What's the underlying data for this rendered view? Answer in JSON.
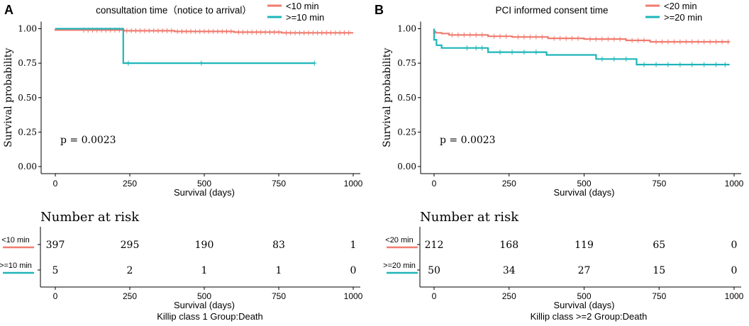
{
  "colors": {
    "group1": "#F07C70",
    "group2": "#1FB5BA",
    "axis": "#000000"
  },
  "chart_data": [
    {
      "panel_label": "A",
      "type": "line",
      "title": "consultation time（notice to arrival）",
      "xlabel": "Survival (days)",
      "ylabel": "Survival probability",
      "xlim": [
        0,
        1000
      ],
      "ylim": [
        0,
        1
      ],
      "x_ticks": [
        0,
        250,
        500,
        750,
        1000
      ],
      "y_ticks": [
        0.0,
        0.25,
        0.5,
        0.75,
        1.0
      ],
      "y_tick_labels": [
        "0.00",
        "0.25",
        "0.50",
        "0.75",
        "1.00"
      ],
      "p_value": "p = 0.0023",
      "series": [
        {
          "name": "<10 min",
          "steps": [
            [
              0,
              1.0
            ],
            [
              0,
              0.99
            ],
            [
              230,
              0.99
            ],
            [
              230,
              0.985
            ],
            [
              400,
              0.985
            ],
            [
              400,
              0.98
            ],
            [
              600,
              0.98
            ],
            [
              600,
              0.975
            ],
            [
              760,
              0.975
            ],
            [
              760,
              0.97
            ],
            [
              1000,
              0.97
            ]
          ],
          "censor": [
            [
              95,
              0.99
            ],
            [
              110,
              0.99
            ],
            [
              125,
              0.99
            ],
            [
              140,
              0.99
            ],
            [
              155,
              0.99
            ],
            [
              170,
              0.99
            ],
            [
              185,
              0.99
            ],
            [
              200,
              0.99
            ],
            [
              215,
              0.99
            ],
            [
              240,
              0.985
            ],
            [
              255,
              0.985
            ],
            [
              270,
              0.985
            ],
            [
              285,
              0.985
            ],
            [
              300,
              0.985
            ],
            [
              315,
              0.985
            ],
            [
              330,
              0.985
            ],
            [
              345,
              0.985
            ],
            [
              360,
              0.985
            ],
            [
              375,
              0.985
            ],
            [
              390,
              0.985
            ],
            [
              410,
              0.98
            ],
            [
              425,
              0.98
            ],
            [
              440,
              0.98
            ],
            [
              455,
              0.98
            ],
            [
              470,
              0.98
            ],
            [
              485,
              0.98
            ],
            [
              500,
              0.98
            ],
            [
              515,
              0.98
            ],
            [
              530,
              0.98
            ],
            [
              545,
              0.98
            ],
            [
              560,
              0.98
            ],
            [
              575,
              0.98
            ],
            [
              590,
              0.98
            ],
            [
              615,
              0.975
            ],
            [
              630,
              0.975
            ],
            [
              645,
              0.975
            ],
            [
              660,
              0.975
            ],
            [
              675,
              0.975
            ],
            [
              690,
              0.975
            ],
            [
              705,
              0.975
            ],
            [
              720,
              0.975
            ],
            [
              735,
              0.975
            ],
            [
              750,
              0.975
            ],
            [
              775,
              0.97
            ],
            [
              790,
              0.97
            ],
            [
              805,
              0.97
            ],
            [
              820,
              0.97
            ],
            [
              835,
              0.97
            ],
            [
              850,
              0.97
            ],
            [
              865,
              0.97
            ],
            [
              880,
              0.97
            ],
            [
              895,
              0.97
            ],
            [
              910,
              0.97
            ],
            [
              925,
              0.97
            ],
            [
              940,
              0.97
            ],
            [
              955,
              0.97
            ],
            [
              970,
              0.97
            ],
            [
              985,
              0.97
            ]
          ]
        },
        {
          "name": ">=10 min",
          "steps": [
            [
              0,
              1.0
            ],
            [
              228,
              1.0
            ],
            [
              228,
              0.75
            ],
            [
              870,
              0.75
            ]
          ],
          "censor": [
            [
              245,
              0.75
            ],
            [
              490,
              0.75
            ],
            [
              870,
              0.75
            ]
          ]
        }
      ],
      "risk_table": {
        "title": "Number at risk",
        "xlabel": "Survival (days)",
        "rows": [
          {
            "label": "<10 min",
            "values": [
              "397",
              "295",
              "190",
              "83",
              "1"
            ]
          },
          {
            "label": ">=10 min",
            "values": [
              "5",
              "2",
              "1",
              "1",
              "0"
            ]
          }
        ]
      },
      "caption": "Killip class 1 Group:Death"
    },
    {
      "panel_label": "B",
      "type": "line",
      "title": "PCI informed consent time",
      "xlabel": "Survival (days)",
      "ylabel": "Survival probability",
      "xlim": [
        0,
        1000
      ],
      "ylim": [
        0,
        1
      ],
      "x_ticks": [
        0,
        250,
        500,
        750,
        1000
      ],
      "y_ticks": [
        0.0,
        0.25,
        0.5,
        0.75,
        1.0
      ],
      "y_tick_labels": [
        "0.00",
        "0.25",
        "0.50",
        "0.75",
        "1.00"
      ],
      "p_value": "p = 0.0023",
      "series": [
        {
          "name": "<20 min",
          "steps": [
            [
              0,
              1.0
            ],
            [
              0,
              0.98
            ],
            [
              5,
              0.98
            ],
            [
              5,
              0.97
            ],
            [
              25,
              0.97
            ],
            [
              25,
              0.965
            ],
            [
              50,
              0.965
            ],
            [
              50,
              0.955
            ],
            [
              180,
              0.955
            ],
            [
              180,
              0.945
            ],
            [
              260,
              0.945
            ],
            [
              260,
              0.94
            ],
            [
              380,
              0.94
            ],
            [
              380,
              0.93
            ],
            [
              500,
              0.93
            ],
            [
              500,
              0.925
            ],
            [
              640,
              0.925
            ],
            [
              640,
              0.915
            ],
            [
              720,
              0.915
            ],
            [
              720,
              0.905
            ],
            [
              985,
              0.905
            ]
          ],
          "censor": [
            [
              60,
              0.955
            ],
            [
              80,
              0.955
            ],
            [
              100,
              0.955
            ],
            [
              120,
              0.955
            ],
            [
              140,
              0.955
            ],
            [
              160,
              0.955
            ],
            [
              200,
              0.945
            ],
            [
              220,
              0.945
            ],
            [
              240,
              0.945
            ],
            [
              280,
              0.94
            ],
            [
              300,
              0.94
            ],
            [
              320,
              0.94
            ],
            [
              340,
              0.94
            ],
            [
              360,
              0.94
            ],
            [
              400,
              0.93
            ],
            [
              420,
              0.93
            ],
            [
              440,
              0.93
            ],
            [
              460,
              0.93
            ],
            [
              480,
              0.93
            ],
            [
              520,
              0.925
            ],
            [
              540,
              0.925
            ],
            [
              560,
              0.925
            ],
            [
              580,
              0.925
            ],
            [
              600,
              0.925
            ],
            [
              620,
              0.925
            ],
            [
              660,
              0.915
            ],
            [
              680,
              0.915
            ],
            [
              700,
              0.915
            ],
            [
              740,
              0.905
            ],
            [
              760,
              0.905
            ],
            [
              780,
              0.905
            ],
            [
              800,
              0.905
            ],
            [
              820,
              0.905
            ],
            [
              840,
              0.905
            ],
            [
              860,
              0.905
            ],
            [
              880,
              0.905
            ],
            [
              900,
              0.905
            ],
            [
              920,
              0.905
            ],
            [
              940,
              0.905
            ],
            [
              960,
              0.905
            ],
            [
              980,
              0.905
            ]
          ]
        },
        {
          "name": ">=20 min",
          "steps": [
            [
              0,
              1.0
            ],
            [
              0,
              0.92
            ],
            [
              8,
              0.92
            ],
            [
              8,
              0.88
            ],
            [
              25,
              0.88
            ],
            [
              25,
              0.86
            ],
            [
              180,
              0.86
            ],
            [
              180,
              0.83
            ],
            [
              375,
              0.83
            ],
            [
              375,
              0.81
            ],
            [
              540,
              0.81
            ],
            [
              540,
              0.78
            ],
            [
              675,
              0.78
            ],
            [
              675,
              0.74
            ],
            [
              985,
              0.74
            ]
          ],
          "censor": [
            [
              110,
              0.86
            ],
            [
              140,
              0.86
            ],
            [
              160,
              0.86
            ],
            [
              220,
              0.83
            ],
            [
              260,
              0.83
            ],
            [
              300,
              0.83
            ],
            [
              340,
              0.83
            ],
            [
              560,
              0.78
            ],
            [
              600,
              0.78
            ],
            [
              640,
              0.78
            ],
            [
              700,
              0.74
            ],
            [
              740,
              0.74
            ],
            [
              780,
              0.74
            ],
            [
              820,
              0.74
            ],
            [
              860,
              0.74
            ],
            [
              900,
              0.74
            ],
            [
              940,
              0.74
            ],
            [
              970,
              0.74
            ]
          ]
        }
      ],
      "risk_table": {
        "title": "Number at risk",
        "xlabel": "Survival (days)",
        "rows": [
          {
            "label": "<20 min",
            "values": [
              "212",
              "168",
              "119",
              "65",
              "0"
            ]
          },
          {
            "label": ">=20 min",
            "values": [
              "50",
              "34",
              "27",
              "15",
              "0"
            ]
          }
        ]
      },
      "caption": "Killip class >=2 Group:Death"
    }
  ]
}
